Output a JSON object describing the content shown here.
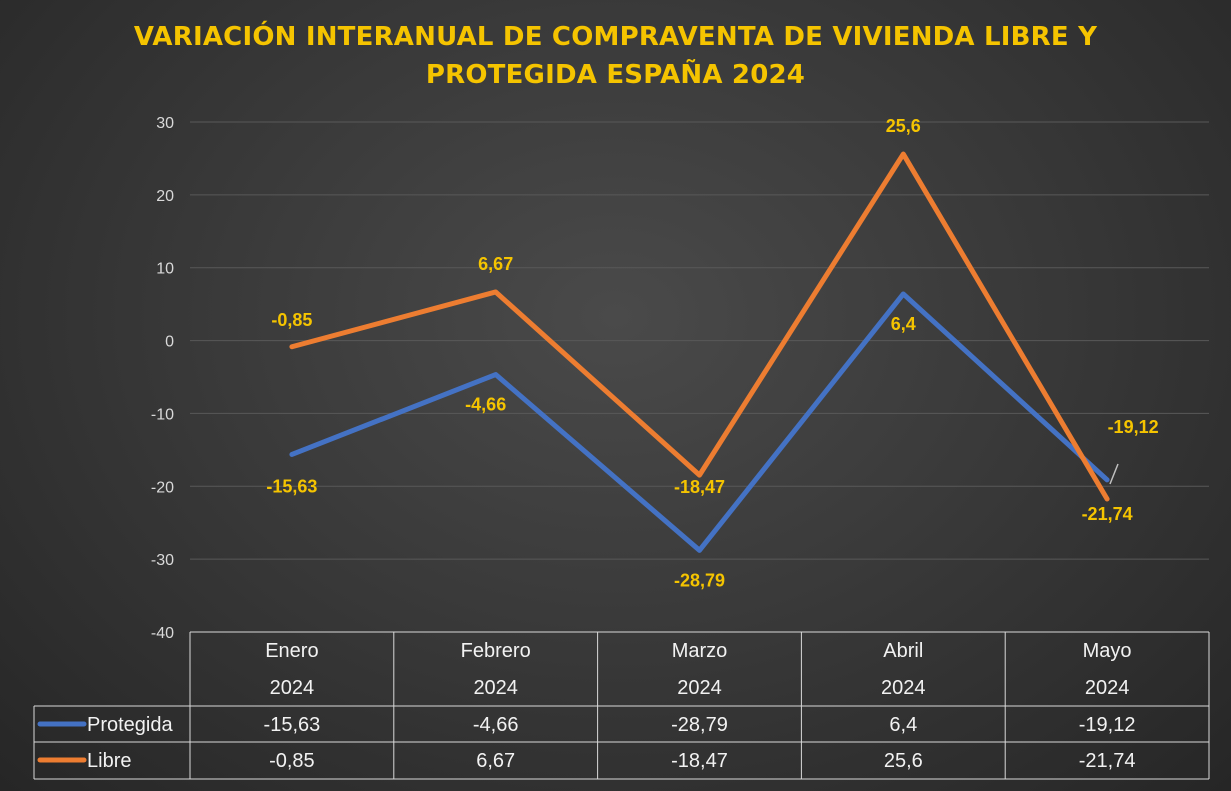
{
  "title_line1": "VARIACIÓN INTERANUAL DE COMPRAVENTA DE VIVIENDA LIBRE Y",
  "title_line2": "PROTEGIDA ESPAÑA 2024",
  "colors": {
    "title": "#f5c400",
    "protegida": "#4472c4",
    "libre": "#ed7d31",
    "labels": "#f5c400",
    "grid": "#595959"
  },
  "chart_data": {
    "type": "line",
    "categories": [
      [
        "Enero",
        "2024"
      ],
      [
        "Febrero",
        "2024"
      ],
      [
        "Marzo",
        "2024"
      ],
      [
        "Abril",
        "2024"
      ],
      [
        "Mayo",
        "2024"
      ]
    ],
    "ylim": [
      -40,
      30
    ],
    "yticks": [
      30,
      20,
      10,
      0,
      -10,
      -20,
      -30,
      -40
    ],
    "grid": true,
    "legend": "data-table",
    "series": [
      {
        "name": "Protegida",
        "color": "#4472c4",
        "values": [
          -15.63,
          -4.66,
          -28.79,
          6.4,
          -19.12
        ],
        "table_values": [
          "-15,63",
          "-4,66",
          "-28,79",
          "6,4",
          "-19,12"
        ],
        "labels": [
          "-15,63",
          "-4,66",
          "-28,79",
          "6,4",
          "-19,12"
        ]
      },
      {
        "name": "Libre",
        "color": "#ed7d31",
        "values": [
          -0.85,
          6.67,
          -18.47,
          25.6,
          -21.74
        ],
        "table_values": [
          "-0,85",
          "6,67",
          "-18,47",
          "25,6",
          "-21,74"
        ],
        "labels": [
          "-0,85",
          "6,67",
          "-18,47",
          "25,6",
          "-21,74"
        ]
      }
    ]
  }
}
